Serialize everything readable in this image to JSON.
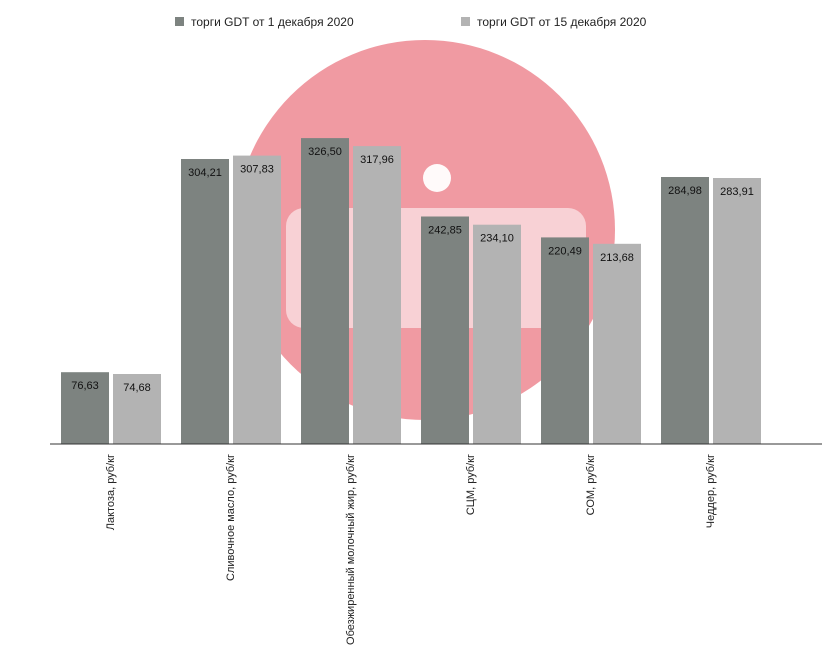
{
  "chart_data": {
    "type": "bar",
    "title": "",
    "xlabel": "",
    "ylabel": "",
    "categories": [
      "Лактоза, руб/кг",
      "Сливочное масло, руб/кг",
      "Обезжиренный молочный жир, руб/кг",
      "СЦМ, руб/кг",
      "СОМ, руб/кг",
      "Чеддер, руб/кг"
    ],
    "series": [
      {
        "name": "торги GDT от 1 декабря 2020",
        "color": "#7d8380",
        "values": [
          76.63,
          304.21,
          326.5,
          242.85,
          220.49,
          284.98
        ],
        "labels": [
          "76,63",
          "304,21",
          "326,50",
          "242,85",
          "220,49",
          "284,98"
        ]
      },
      {
        "name": "торги GDT от 15 декабря 2020",
        "color": "#b3b3b3",
        "values": [
          74.68,
          307.83,
          317.96,
          234.1,
          213.68,
          283.91
        ],
        "labels": [
          "74,68",
          "307,83",
          "317,96",
          "234,10",
          "213,68",
          "283,91"
        ]
      }
    ],
    "ylim": [
      0,
      400
    ],
    "grid": false,
    "legend_position": "top",
    "axes_visible": false
  },
  "watermark": {
    "icon": "logo-watermark-icon",
    "color": "#f09aa2"
  }
}
